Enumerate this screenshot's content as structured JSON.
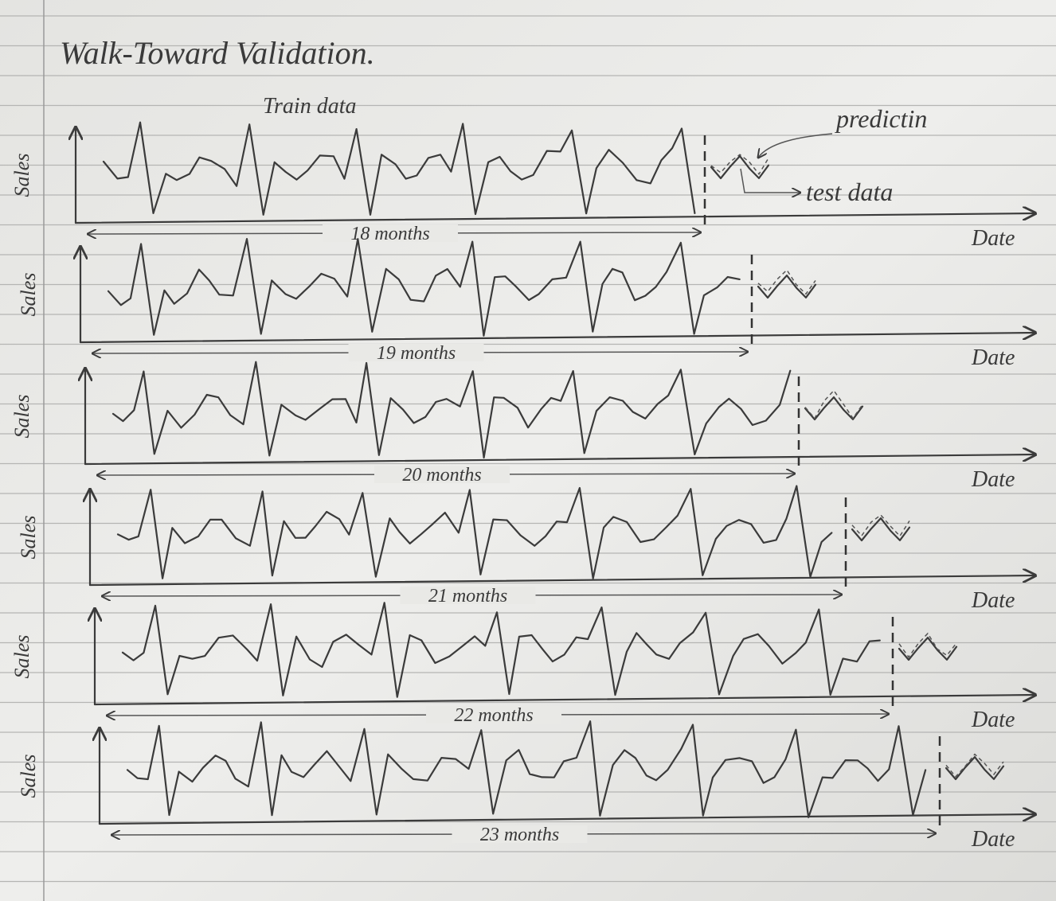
{
  "header": {
    "title": "Walk-Toward Validation."
  },
  "annotations": {
    "train": "Train data",
    "prediction": "predictin",
    "test": "test data"
  },
  "panels": [
    {
      "y_label": "Sales",
      "x_label": "Date",
      "span": "18 months"
    },
    {
      "y_label": "Sales",
      "x_label": "Date",
      "span": "19 months"
    },
    {
      "y_label": "Sales",
      "x_label": "Date",
      "span": "20 months"
    },
    {
      "y_label": "Sales",
      "x_label": "Date",
      "span": "21 months"
    },
    {
      "y_label": "Sales",
      "x_label": "Date",
      "span": "22 months"
    },
    {
      "y_label": "Sales",
      "x_label": "Date",
      "span": "23 months"
    }
  ]
}
